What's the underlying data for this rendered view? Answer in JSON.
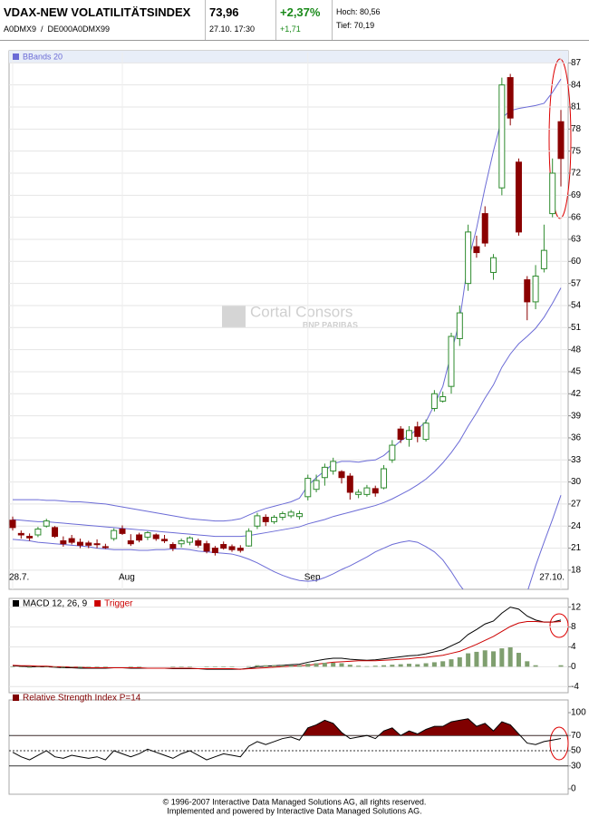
{
  "header": {
    "title": "VDAX-NEW VOLATILITÄTSINDEX",
    "ids": "A0DMX9  /  DE000A0DMX99",
    "price": "73,96",
    "time": "27.10. 17:30",
    "change_pct": "+2,37%",
    "change": "+1,71",
    "high": "Hoch: 80,56",
    "low": "Tief: 70,19"
  },
  "watermark": {
    "brand": "Cortal Consors",
    "sub": "BNP PARIBAS"
  },
  "footer": {
    "line1": "© 1996-2007 Interactive Data Managed Solutions AG, all rights reserved.",
    "line2": "Implemented and powered by Interactive Data Managed Solutions AG."
  },
  "chart_data": [
    {
      "type": "candlestick",
      "legend": "BBands 20",
      "categories": [
        "28.7.",
        null,
        null,
        null,
        null,
        null,
        null,
        null,
        null,
        null,
        null,
        null,
        null,
        "Aug",
        null,
        null,
        null,
        null,
        null,
        null,
        null,
        null,
        null,
        null,
        null,
        null,
        null,
        null,
        null,
        null,
        null,
        null,
        null,
        null,
        null,
        "Sep",
        null,
        null,
        null,
        null,
        null,
        null,
        null,
        null,
        null,
        null,
        null,
        null,
        null,
        null,
        null,
        null,
        null,
        null,
        null,
        null,
        null,
        null,
        null,
        null,
        null,
        null,
        null,
        null,
        null,
        "27.10."
      ],
      "ohlc": [
        [
          24.8,
          25.3,
          23.4,
          23.8
        ],
        [
          23.0,
          23.4,
          22.3,
          22.8
        ],
        [
          22.6,
          23.0,
          22.0,
          22.4
        ],
        [
          22.8,
          23.9,
          22.5,
          23.6
        ],
        [
          24.0,
          25.0,
          23.8,
          24.7
        ],
        [
          23.8,
          24.0,
          22.4,
          22.6
        ],
        [
          22.0,
          22.6,
          21.2,
          21.6
        ],
        [
          22.3,
          22.8,
          21.5,
          21.8
        ],
        [
          21.8,
          22.3,
          21.0,
          21.4
        ],
        [
          21.7,
          22.0,
          21.0,
          21.4
        ],
        [
          21.6,
          22.2,
          21.0,
          21.5
        ],
        [
          21.2,
          21.6,
          20.9,
          21.1
        ],
        [
          22.3,
          23.7,
          22.0,
          23.4
        ],
        [
          23.6,
          24.1,
          22.8,
          23.0
        ],
        [
          22.0,
          22.9,
          21.3,
          21.6
        ],
        [
          22.8,
          23.1,
          21.8,
          22.1
        ],
        [
          22.5,
          23.3,
          22.1,
          23.1
        ],
        [
          22.8,
          23.0,
          22.0,
          22.3
        ],
        [
          22.2,
          22.8,
          21.7,
          22.0
        ],
        [
          21.5,
          21.8,
          20.6,
          21.0
        ],
        [
          21.6,
          22.3,
          21.1,
          22.0
        ],
        [
          21.8,
          22.6,
          21.4,
          22.4
        ],
        [
          22.0,
          22.3,
          21.1,
          21.4
        ],
        [
          21.6,
          22.0,
          20.3,
          20.6
        ],
        [
          21.0,
          21.3,
          20.0,
          20.4
        ],
        [
          21.5,
          21.9,
          20.8,
          21.0
        ],
        [
          21.2,
          21.5,
          20.5,
          20.8
        ],
        [
          21.0,
          21.4,
          20.4,
          20.7
        ],
        [
          21.3,
          23.7,
          21.2,
          23.3
        ],
        [
          24.0,
          25.8,
          23.6,
          25.4
        ],
        [
          25.2,
          25.6,
          24.0,
          24.6
        ],
        [
          24.6,
          25.5,
          24.3,
          25.2
        ],
        [
          25.2,
          26.0,
          24.8,
          25.7
        ],
        [
          25.4,
          26.2,
          25.1,
          25.9
        ],
        [
          25.3,
          26.1,
          24.9,
          25.7
        ],
        [
          28.0,
          31.0,
          27.5,
          30.5
        ],
        [
          29.0,
          31.0,
          28.6,
          30.2
        ],
        [
          30.6,
          32.5,
          29.5,
          32.0
        ],
        [
          31.5,
          33.3,
          31.0,
          32.8
        ],
        [
          31.4,
          31.6,
          29.8,
          30.6
        ],
        [
          30.8,
          31.2,
          27.6,
          28.6
        ],
        [
          28.3,
          29.0,
          27.8,
          28.6
        ],
        [
          28.3,
          29.6,
          28.0,
          29.2
        ],
        [
          29.1,
          29.5,
          28.0,
          28.5
        ],
        [
          29.2,
          32.3,
          29.0,
          31.8
        ],
        [
          33.0,
          35.7,
          32.6,
          35.0
        ],
        [
          37.2,
          37.6,
          35.3,
          35.8
        ],
        [
          35.8,
          37.6,
          34.8,
          37.0
        ],
        [
          37.5,
          38.2,
          35.4,
          36.2
        ],
        [
          35.8,
          38.5,
          35.5,
          38.0
        ],
        [
          40.0,
          42.5,
          39.6,
          42.0
        ],
        [
          41.0,
          42.3,
          40.8,
          41.6
        ],
        [
          43.0,
          50.3,
          42.0,
          49.8
        ],
        [
          49.5,
          54.0,
          48.5,
          53.0
        ],
        [
          57.0,
          65.0,
          56.0,
          64.0
        ],
        [
          62.0,
          63.5,
          60.5,
          61.2
        ],
        [
          66.5,
          67.5,
          62.0,
          62.5
        ],
        [
          58.5,
          61.0,
          57.5,
          60.5
        ],
        [
          70.0,
          85.0,
          69.0,
          84.0
        ],
        [
          85.0,
          85.5,
          78.5,
          79.5
        ],
        [
          73.5,
          74.0,
          63.5,
          64.0
        ],
        [
          57.5,
          58.0,
          52.0,
          54.5
        ],
        [
          54.5,
          59.5,
          53.5,
          58.0
        ],
        [
          59.0,
          65.0,
          58.5,
          61.5
        ],
        [
          66.5,
          74.0,
          66.0,
          72.0
        ],
        [
          79.0,
          80.6,
          70.2,
          74.0
        ]
      ],
      "up_color": "#2e8b2e",
      "down_color": "#8b0000",
      "bands": {
        "color": "#6b6bd6",
        "upper": [
          27.6,
          27.6,
          27.6,
          27.6,
          27.5,
          27.5,
          27.4,
          27.3,
          27.3,
          27.2,
          27.1,
          27.0,
          26.8,
          26.6,
          26.4,
          26.2,
          26.0,
          25.8,
          25.6,
          25.4,
          25.2,
          25.0,
          24.9,
          24.8,
          24.7,
          24.7,
          24.8,
          25.0,
          25.5,
          26.0,
          26.4,
          26.7,
          27.0,
          27.3,
          27.8,
          29.5,
          30.6,
          31.5,
          32.5,
          32.8,
          32.8,
          32.7,
          32.9,
          33.0,
          33.6,
          34.6,
          35.6,
          36.3,
          37.2,
          38.2,
          40.5,
          43.0,
          47.5,
          52.0,
          60.0,
          64.5,
          70.0,
          75.0,
          79.5,
          80.5,
          80.8,
          81.0,
          81.2,
          81.5,
          83.0,
          84.8
        ],
        "middle": [
          24.9,
          24.8,
          24.7,
          24.6,
          24.6,
          24.5,
          24.4,
          24.3,
          24.2,
          24.1,
          24.0,
          23.9,
          23.8,
          23.7,
          23.6,
          23.5,
          23.4,
          23.3,
          23.2,
          23.1,
          23.0,
          22.9,
          22.8,
          22.7,
          22.6,
          22.6,
          22.6,
          22.6,
          22.7,
          22.9,
          23.1,
          23.3,
          23.5,
          23.7,
          23.9,
          24.3,
          24.6,
          24.9,
          25.3,
          25.6,
          25.9,
          26.2,
          26.5,
          26.8,
          27.2,
          27.7,
          28.3,
          28.9,
          29.6,
          30.4,
          31.4,
          32.6,
          34.0,
          35.6,
          37.6,
          39.4,
          41.4,
          43.2,
          45.6,
          47.4,
          48.8,
          49.8,
          50.9,
          52.4,
          54.3,
          56.4
        ],
        "lower": [
          22.2,
          22.1,
          22.0,
          21.8,
          21.7,
          21.6,
          21.5,
          21.4,
          21.3,
          21.2,
          21.0,
          20.9,
          20.8,
          20.8,
          20.8,
          20.7,
          20.7,
          20.8,
          20.8,
          20.9,
          20.9,
          20.8,
          20.6,
          20.5,
          20.4,
          20.3,
          20.2,
          19.9,
          19.5,
          19.0,
          18.4,
          17.8,
          17.3,
          16.9,
          16.6,
          16.5,
          16.6,
          17.0,
          17.5,
          18.1,
          18.6,
          19.2,
          19.8,
          20.5,
          21.0,
          21.5,
          21.8,
          22.0,
          21.8,
          21.2,
          20.5,
          19.4,
          17.8,
          16.0,
          14.5,
          13.0,
          11.0,
          9.0,
          7.5,
          8.0,
          11.0,
          15.0,
          18.6,
          21.8,
          24.9,
          28.2
        ]
      },
      "ylim": [
        15.4,
        88.4
      ],
      "yticks": [
        18,
        21,
        24,
        27,
        30,
        33,
        36,
        39,
        42,
        45,
        48,
        51,
        54,
        57,
        60,
        63,
        66,
        69,
        72,
        75,
        78,
        81,
        84,
        87
      ],
      "grid": true
    },
    {
      "type": "line",
      "series": [
        {
          "name": "MACD 12, 26, 9",
          "color": "#000000",
          "values": [
            0.2,
            0.1,
            0.0,
            0.0,
            0.0,
            -0.1,
            -0.2,
            -0.2,
            -0.3,
            -0.3,
            -0.3,
            -0.3,
            -0.2,
            -0.2,
            -0.3,
            -0.3,
            -0.3,
            -0.3,
            -0.3,
            -0.4,
            -0.4,
            -0.4,
            -0.4,
            -0.5,
            -0.5,
            -0.5,
            -0.5,
            -0.5,
            -0.3,
            0.0,
            0.1,
            0.2,
            0.3,
            0.4,
            0.5,
            0.9,
            1.2,
            1.5,
            1.7,
            1.7,
            1.5,
            1.4,
            1.3,
            1.4,
            1.6,
            1.8,
            2.0,
            2.2,
            2.3,
            2.6,
            3.0,
            3.4,
            4.2,
            5.0,
            6.5,
            7.5,
            8.6,
            9.2,
            10.8,
            12.0,
            11.6,
            10.2,
            9.4,
            9.0,
            9.0,
            9.4
          ]
        },
        {
          "name": "Trigger",
          "color": "#cc0000",
          "values": [
            0.3,
            0.2,
            0.2,
            0.1,
            0.1,
            0.0,
            0.0,
            -0.1,
            -0.1,
            -0.2,
            -0.2,
            -0.2,
            -0.2,
            -0.2,
            -0.2,
            -0.2,
            -0.3,
            -0.3,
            -0.3,
            -0.3,
            -0.3,
            -0.3,
            -0.4,
            -0.4,
            -0.4,
            -0.4,
            -0.4,
            -0.5,
            -0.4,
            -0.3,
            -0.2,
            -0.1,
            0.0,
            0.1,
            0.2,
            0.3,
            0.5,
            0.7,
            0.9,
            1.0,
            1.1,
            1.2,
            1.2,
            1.2,
            1.3,
            1.4,
            1.5,
            1.6,
            1.8,
            1.9,
            2.1,
            2.3,
            2.7,
            3.1,
            3.8,
            4.5,
            5.3,
            6.1,
            7.1,
            8.1,
            8.8,
            9.1,
            9.1,
            9.0,
            9.0,
            9.1
          ]
        },
        {
          "color": "#7f9f6f",
          "kind": "bar",
          "values": [
            -0.1,
            -0.1,
            -0.2,
            -0.1,
            -0.1,
            -0.1,
            -0.2,
            -0.1,
            -0.2,
            -0.1,
            -0.1,
            -0.1,
            0,
            0,
            -0.1,
            -0.1,
            0,
            0,
            0,
            -0.1,
            -0.1,
            -0.1,
            0,
            -0.1,
            -0.1,
            -0.1,
            -0.1,
            0,
            0.1,
            0.3,
            0.3,
            0.3,
            0.3,
            0.3,
            0.3,
            0.6,
            0.7,
            0.8,
            0.8,
            0.7,
            0.4,
            0.2,
            0.1,
            0.2,
            0.3,
            0.4,
            0.5,
            0.6,
            0.5,
            0.7,
            0.9,
            1.1,
            1.5,
            1.9,
            2.7,
            3.0,
            3.3,
            3.1,
            3.7,
            3.9,
            2.8,
            1.1,
            0.3,
            0,
            0,
            0.3
          ]
        }
      ],
      "ylim": [
        -4.5,
        12.3
      ],
      "yticks": [
        -4,
        0,
        4,
        8,
        12
      ],
      "grid": true
    },
    {
      "type": "line",
      "title": "Relative Strength Index P=14",
      "title_color": "#800000",
      "series": [
        {
          "color": "#000000",
          "values": [
            48,
            42,
            38,
            44,
            50,
            42,
            40,
            44,
            42,
            40,
            42,
            38,
            50,
            46,
            42,
            46,
            52,
            48,
            44,
            40,
            46,
            50,
            44,
            38,
            42,
            46,
            44,
            42,
            56,
            62,
            58,
            62,
            66,
            68,
            64,
            80,
            84,
            90,
            86,
            74,
            66,
            68,
            70,
            66,
            76,
            80,
            70,
            76,
            72,
            78,
            82,
            82,
            88,
            90,
            92,
            82,
            86,
            76,
            88,
            84,
            72,
            60,
            58,
            62,
            64,
            66
          ]
        }
      ],
      "levels": [
        {
          "value": 70,
          "style": "solid"
        },
        {
          "value": 50,
          "style": "dotted"
        },
        {
          "value": 30,
          "style": "solid"
        }
      ],
      "fill_above": 70,
      "fill_color": "#800000",
      "ylim": [
        -6,
        116.7
      ],
      "yticks": [
        0,
        30,
        50,
        70,
        100
      ],
      "grid": false
    }
  ]
}
